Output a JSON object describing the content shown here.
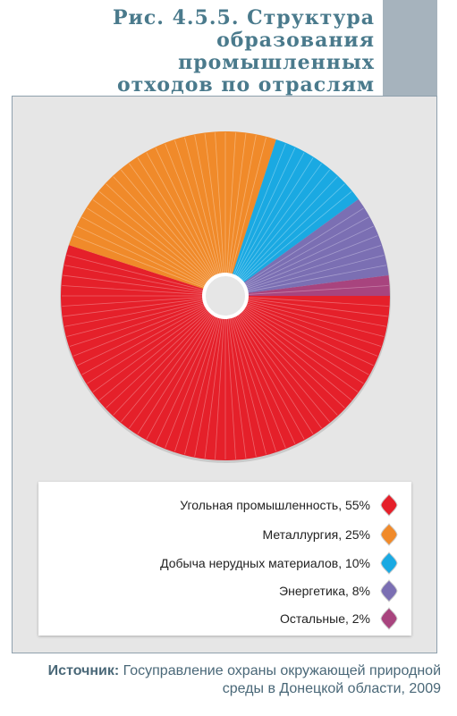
{
  "header": {
    "title": "Рис. 4.5.5. Структура\nобразования промышленных\nотходов по отраслям\nэкономики"
  },
  "chart_data": {
    "type": "pie",
    "donut": true,
    "start_angle_deg": 90,
    "direction": "clockwise",
    "legend_position": "bottom",
    "slices": [
      {
        "label": "Угольная промышленность, 55%",
        "value": 55,
        "color": "#e5202a",
        "stripe": "#f07a80"
      },
      {
        "label": "Металлургия, 25%",
        "value": 25,
        "color": "#f08a2a",
        "stripe": "#f7bd86"
      },
      {
        "label": "Добыча нерудных материалов, 10%",
        "value": 10,
        "color": "#1aa9e2",
        "stripe": "#7fd0f0"
      },
      {
        "label": "Энергетика, 8%",
        "value": 8,
        "color": "#7b6fb3",
        "stripe": "#b3abd6"
      },
      {
        "label": "Остальные, 2%",
        "value": 2,
        "color": "#a8447e",
        "stripe": "#cf8fb4"
      }
    ]
  },
  "source": {
    "label": "Источник:",
    "text": " Госуправление охраны окружающей природной среды в Донецкой области, 2009"
  }
}
